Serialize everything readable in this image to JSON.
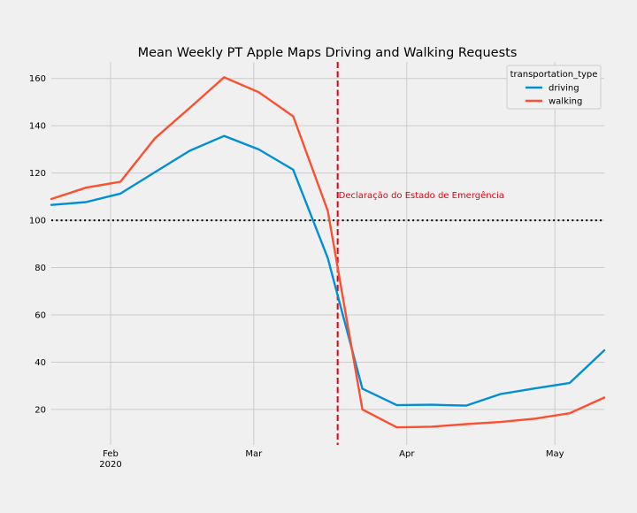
{
  "chart_data": {
    "type": "line",
    "title": "Mean Weekly PT Apple Maps Driving and Walking Requests",
    "xlabel": "",
    "ylabel": "",
    "x": [
      "2020-01-20",
      "2020-01-27",
      "2020-02-03",
      "2020-02-10",
      "2020-02-17",
      "2020-02-24",
      "2020-03-02",
      "2020-03-09",
      "2020-03-16",
      "2020-03-23",
      "2020-03-30",
      "2020-04-06",
      "2020-04-13",
      "2020-04-20",
      "2020-04-27",
      "2020-05-04",
      "2020-05-11"
    ],
    "xlim": [
      "2020-01-20",
      "2020-05-11"
    ],
    "ylim": [
      5,
      167
    ],
    "x_ticks": [
      {
        "date": "2020-02-01",
        "label": "Feb",
        "sublabel": "2020"
      },
      {
        "date": "2020-03-01",
        "label": "Mar",
        "sublabel": ""
      },
      {
        "date": "2020-04-01",
        "label": "Apr",
        "sublabel": ""
      },
      {
        "date": "2020-05-01",
        "label": "May",
        "sublabel": ""
      }
    ],
    "y_ticks": [
      20,
      40,
      60,
      80,
      100,
      120,
      140,
      160
    ],
    "series": [
      {
        "name": "driving",
        "color": "#008fd5",
        "values": [
          106.5,
          107.7,
          111.3,
          120.4,
          129.4,
          135.7,
          130.0,
          121.4,
          84.0,
          28.8,
          21.8,
          22.0,
          21.6,
          26.5,
          28.9,
          31.2,
          45.0
        ]
      },
      {
        "name": "walking",
        "color": "#fc4f30",
        "values": [
          109.0,
          113.8,
          116.3,
          134.7,
          147.5,
          160.5,
          154.2,
          144.0,
          104.0,
          20.0,
          12.4,
          12.7,
          13.8,
          14.7,
          16.1,
          18.4,
          25.0
        ]
      }
    ],
    "reference_line": {
      "y": 100,
      "style": "dotted",
      "color": "#000000"
    },
    "event_line": {
      "date": "2020-03-18",
      "style": "dashed",
      "color": "#e5000d",
      "label": "Declaração do Estado de Emergência"
    },
    "legend": {
      "title": "transportation_type",
      "placement": "top-right"
    },
    "grid": true
  }
}
